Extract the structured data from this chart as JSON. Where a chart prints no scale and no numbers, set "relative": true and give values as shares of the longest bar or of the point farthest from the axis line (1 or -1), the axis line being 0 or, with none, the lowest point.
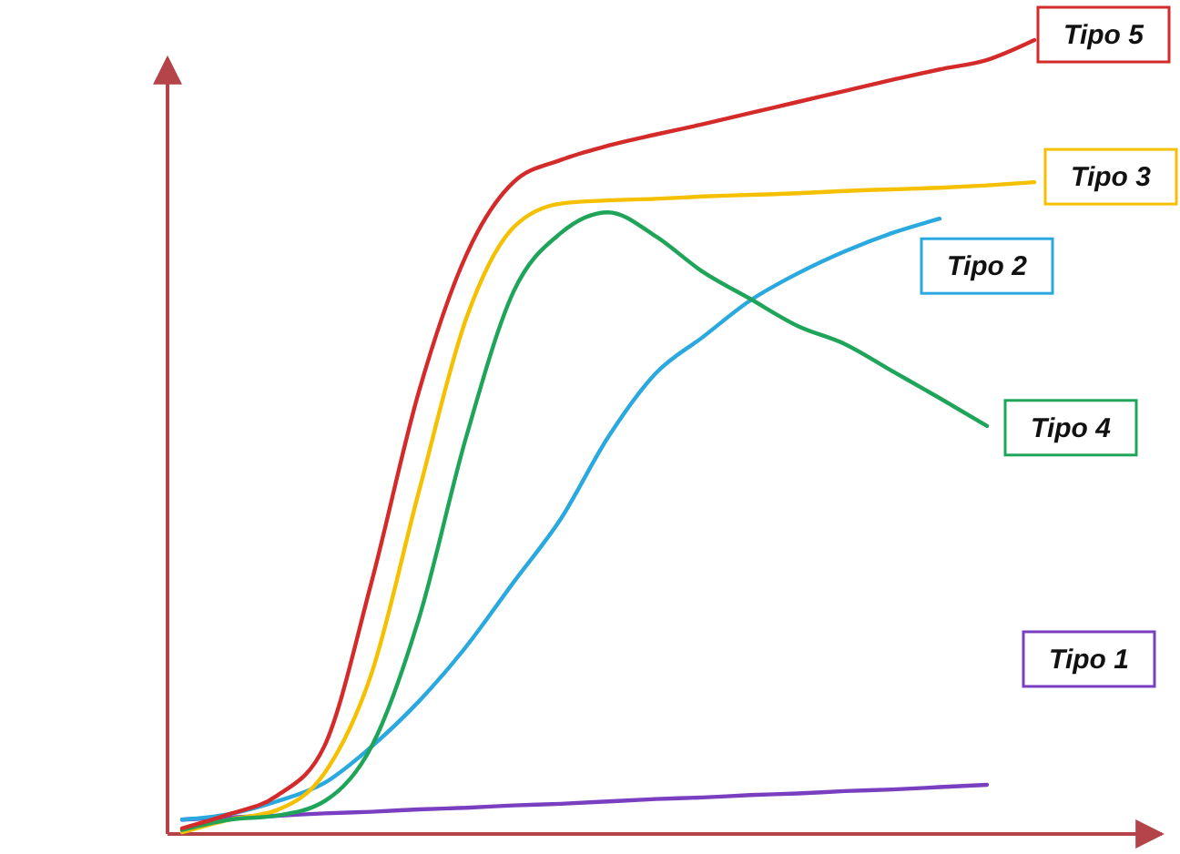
{
  "chart_data": {
    "type": "line",
    "relative": true,
    "categories": [
      null,
      null,
      null,
      null,
      null,
      null,
      null,
      null,
      null,
      null,
      null,
      null,
      null,
      null,
      null,
      null,
      null,
      null,
      null,
      null,
      null
    ],
    "series": [
      {
        "name": "Tipo 1",
        "color": "#7a3fc0",
        "values": [
          0.018,
          0.021,
          0.023,
          0.026,
          0.028,
          0.031,
          0.033,
          0.036,
          0.038,
          0.041,
          0.044,
          0.046,
          0.049,
          0.051,
          0.054,
          0.056,
          0.059,
          0.062,
          null,
          null,
          null
        ]
      },
      {
        "name": "Tipo 2",
        "color": "#2aa8e0",
        "values": [
          0.018,
          0.025,
          0.041,
          0.064,
          0.11,
          0.167,
          0.236,
          0.317,
          0.397,
          0.5,
          0.58,
          0.626,
          0.672,
          0.706,
          0.734,
          0.757,
          0.775,
          null,
          null,
          null,
          null
        ]
      },
      {
        "name": "Tipo 3",
        "color": "#f5c000",
        "values": [
          0.002,
          0.018,
          0.03,
          0.076,
          0.202,
          0.431,
          0.649,
          0.764,
          0.794,
          0.798,
          0.8,
          0.803,
          0.805,
          0.807,
          0.81,
          0.812,
          0.814,
          0.817,
          0.821,
          null,
          null
        ]
      },
      {
        "name": "Tipo 4",
        "color": "#1fa55a",
        "values": [
          0.005,
          0.018,
          0.023,
          0.041,
          0.11,
          0.271,
          0.5,
          0.683,
          0.757,
          0.783,
          0.753,
          0.708,
          0.674,
          0.64,
          0.617,
          0.583,
          0.549,
          0.514,
          null,
          null,
          null
        ]
      },
      {
        "name": "Tipo 5",
        "color": "#d42a2a",
        "values": [
          0.007,
          0.025,
          0.048,
          0.11,
          0.317,
          0.557,
          0.729,
          0.821,
          0.849,
          0.867,
          0.881,
          0.894,
          0.908,
          0.922,
          0.936,
          0.95,
          0.963,
          0.975,
          1,
          null,
          null
        ]
      }
    ]
  }
}
